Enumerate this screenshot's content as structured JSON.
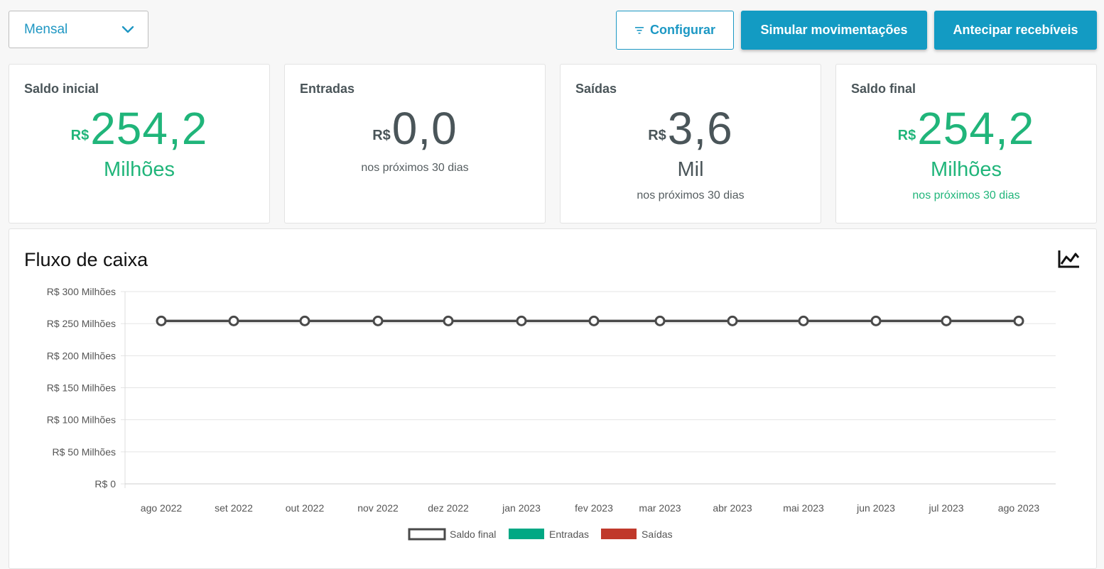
{
  "toolbar": {
    "period_value": "Mensal",
    "configure_label": "Configurar",
    "simulate_label": "Simular movimentações",
    "anticipate_label": "Antecipar recebíveis"
  },
  "cards": [
    {
      "title": "Saldo inicial",
      "currency": "R$",
      "value": "254,2",
      "unit": "Milhões",
      "subtitle": ""
    },
    {
      "title": "Entradas",
      "currency": "R$",
      "value": "0,0",
      "unit": "",
      "subtitle": "nos próximos 30 dias"
    },
    {
      "title": "Saídas",
      "currency": "R$",
      "value": "3,6",
      "unit": "Mil",
      "subtitle": "nos próximos 30 dias"
    },
    {
      "title": "Saldo final",
      "currency": "R$",
      "value": "254,2",
      "unit": "Milhões",
      "subtitle": "nos próximos 30 dias"
    }
  ],
  "colors": {
    "accent": "#139bc3",
    "positive": "#20b57a",
    "neutral": "#4a5559",
    "entradas": "#00a884",
    "saidas": "#c0392b",
    "saldo_line": "#4a4a4a"
  },
  "chart_panel": {
    "title": "Fluxo de caixa",
    "icon": "line-chart-icon"
  },
  "chart_data": {
    "type": "line",
    "title": "",
    "xlabel": "",
    "ylabel": "",
    "ylim": [
      0,
      300
    ],
    "yticks": [
      "R$ 0",
      "R$ 50 Milhões",
      "R$ 100 Milhões",
      "R$ 150 Milhões",
      "R$ 200 Milhões",
      "R$ 250 Milhões",
      "R$ 300 Milhões"
    ],
    "ytick_values": [
      0,
      50,
      100,
      150,
      200,
      250,
      300
    ],
    "categories": [
      "ago 2022",
      "set 2022",
      "out 2022",
      "nov 2022",
      "dez 2022",
      "jan 2023",
      "fev 2023",
      "mar 2023",
      "abr 2023",
      "mai 2023",
      "jun 2023",
      "jul 2023",
      "ago 2023"
    ],
    "series": [
      {
        "name": "Saldo final",
        "values": [
          254.2,
          254.2,
          254.2,
          254.2,
          254.2,
          254.2,
          254.2,
          254.2,
          254.2,
          254.2,
          254.2,
          254.2,
          254.2
        ]
      },
      {
        "name": "Entradas",
        "values": [
          0,
          0,
          0,
          0,
          0,
          0,
          0,
          0,
          0,
          0,
          0,
          0,
          0
        ]
      },
      {
        "name": "Saídas",
        "values": [
          0,
          0,
          0,
          0,
          0,
          0,
          0,
          0,
          0,
          0,
          0,
          0,
          0
        ]
      }
    ],
    "grid": true,
    "legend_position": "bottom-center"
  }
}
